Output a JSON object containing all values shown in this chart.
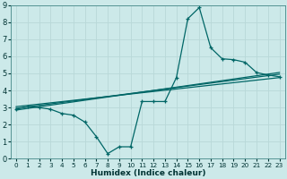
{
  "xlabel": "Humidex (Indice chaleur)",
  "bg_color": "#cce9e9",
  "grid_color": "#b8d8d8",
  "line_color": "#006666",
  "xlim": [
    -0.5,
    23.5
  ],
  "ylim": [
    0,
    9
  ],
  "xtick_vals": [
    0,
    1,
    2,
    3,
    4,
    5,
    6,
    7,
    8,
    9,
    10,
    11,
    12,
    13,
    14,
    15,
    16,
    17,
    18,
    19,
    20,
    21,
    22,
    23
  ],
  "ytick_vals": [
    0,
    1,
    2,
    3,
    4,
    5,
    6,
    7,
    8,
    9
  ],
  "series1_x": [
    0,
    1,
    2,
    3,
    4,
    5,
    6,
    7,
    8,
    9,
    10,
    11,
    12,
    13,
    14,
    15,
    16,
    17,
    18,
    19,
    20,
    21,
    22,
    23
  ],
  "series1_y": [
    2.9,
    3.05,
    3.0,
    2.9,
    2.65,
    2.55,
    2.15,
    1.3,
    0.3,
    0.7,
    0.7,
    3.35,
    3.35,
    3.35,
    4.75,
    8.2,
    8.85,
    6.5,
    5.85,
    5.8,
    5.65,
    5.05,
    4.9,
    4.8
  ],
  "series2_x": [
    0,
    23
  ],
  "series2_y": [
    2.95,
    4.95
  ],
  "series3_x": [
    0,
    23
  ],
  "series3_y": [
    3.05,
    4.75
  ],
  "series4_x": [
    0,
    23
  ],
  "series4_y": [
    2.85,
    5.05
  ]
}
